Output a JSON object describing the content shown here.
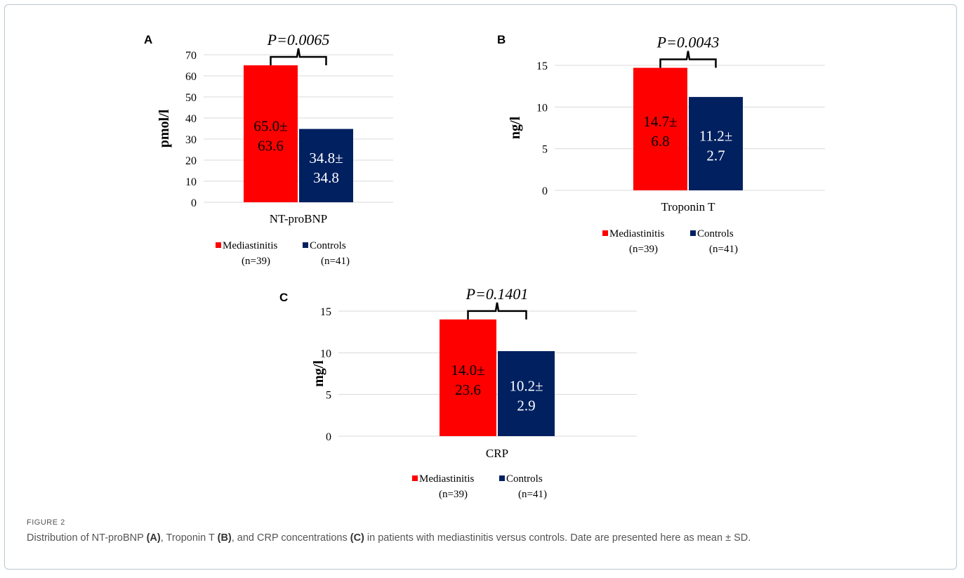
{
  "colors": {
    "mediastinitis": "#ff0000",
    "controls": "#002060",
    "grid": "#d9d9d9",
    "text": "#000000"
  },
  "chart_data": [
    {
      "type": "bar",
      "panel": "A",
      "p_value": "P=0.0065",
      "categories": [
        "NT-proBNP"
      ],
      "ylabel": "pmol/l",
      "ylim": [
        0,
        70
      ],
      "yticks": [
        0,
        10,
        20,
        30,
        40,
        50,
        60,
        70
      ],
      "series": [
        {
          "name": "Mediastinitis",
          "n": "(n=39)",
          "values": [
            65.0
          ],
          "label_top": "65.0±",
          "label_bottom": "63.6"
        },
        {
          "name": "Controls",
          "n": "(n=41)",
          "values": [
            34.8
          ],
          "label_top": "34.8±",
          "label_bottom": "34.8"
        }
      ]
    },
    {
      "type": "bar",
      "panel": "B",
      "p_value": "P=0.0043",
      "categories": [
        "Troponin T"
      ],
      "ylabel": "ng/l",
      "ylim": [
        0,
        15
      ],
      "yticks": [
        0,
        5,
        10,
        15
      ],
      "series": [
        {
          "name": "Mediastinitis",
          "n": "(n=39)",
          "values": [
            14.7
          ],
          "label_top": "14.7±",
          "label_bottom": "6.8"
        },
        {
          "name": "Controls",
          "n": "(n=41)",
          "values": [
            11.2
          ],
          "label_top": "11.2±",
          "label_bottom": "2.7"
        }
      ]
    },
    {
      "type": "bar",
      "panel": "C",
      "p_value": "P=0.1401",
      "categories": [
        "CRP"
      ],
      "ylabel": "mg/l",
      "ylim": [
        0,
        15
      ],
      "yticks": [
        0,
        5,
        10,
        15
      ],
      "series": [
        {
          "name": "Mediastinitis",
          "n": "(n=39)",
          "values": [
            14.0
          ],
          "label_top": "14.0±",
          "label_bottom": "23.6"
        },
        {
          "name": "Controls",
          "n": "(n=41)",
          "values": [
            10.2
          ],
          "label_top": "10.2±",
          "label_bottom": "2.9"
        }
      ]
    }
  ],
  "caption": {
    "figure_label": "FIGURE 2",
    "text_1": "Distribution of NT-proBNP ",
    "ref_a": "(A)",
    "text_2": ", Troponin T ",
    "ref_b": "(B)",
    "text_3": ", and CRP concentrations ",
    "ref_c": "(C)",
    "text_4": " in patients with mediastinitis versus controls. Date are presented here as mean ± SD."
  }
}
